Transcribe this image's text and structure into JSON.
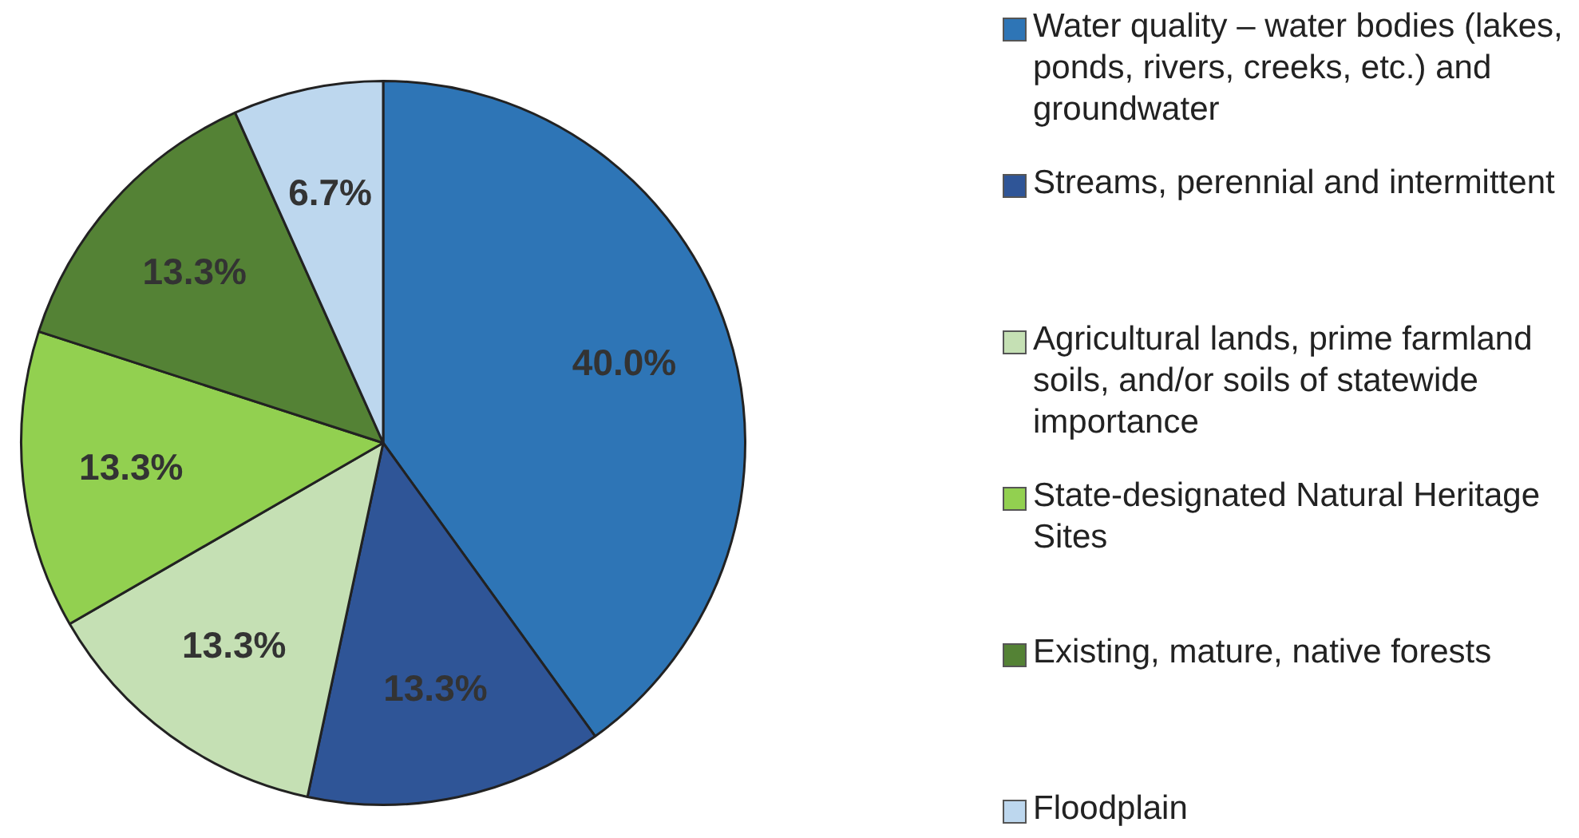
{
  "chart_data": {
    "type": "pie",
    "categories": [
      "Water quality – water bodies (lakes, ponds, rivers, creeks, etc.) and groundwater",
      "Streams, perennial and intermittent",
      "Agricultural lands, prime farmland soils, and/or soils of statewide importance",
      "State-designated Natural Heritage Sites",
      "Existing, mature, native forests",
      "Floodplain"
    ],
    "values": [
      40.0,
      13.3,
      13.3,
      13.3,
      13.3,
      6.7
    ],
    "colors": [
      "#2e75b6",
      "#2f5597",
      "#c5e0b4",
      "#92d050",
      "#548235",
      "#bdd7ee"
    ],
    "value_labels": [
      "40.0%",
      "13.3%",
      "13.3%",
      "13.3%",
      "13.3%",
      "6.7%"
    ],
    "legend": "right"
  }
}
